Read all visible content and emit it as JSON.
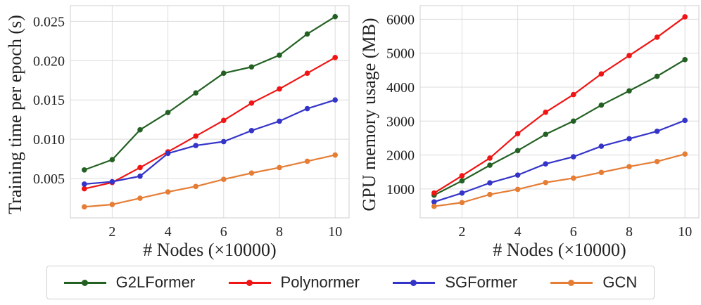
{
  "chart_data": [
    {
      "type": "line",
      "ylabel": "Training time per epoch (s)",
      "xlabel": "# Nodes (×10000)",
      "xlim": [
        0.5,
        10.5
      ],
      "ylim": [
        0.0,
        0.027
      ],
      "xticks": [
        2,
        4,
        6,
        8,
        10
      ],
      "yticks": [
        0.005,
        0.01,
        0.015,
        0.02,
        0.025
      ],
      "ytick_labels": [
        "0.005",
        "0.010",
        "0.015",
        "0.020",
        "0.025"
      ],
      "grid": true,
      "x": [
        1,
        2,
        3,
        4,
        5,
        6,
        7,
        8,
        9,
        10
      ],
      "series": [
        {
          "name": "G2LFormer",
          "values": [
            0.0061,
            0.0074,
            0.0112,
            0.0134,
            0.0159,
            0.0184,
            0.0192,
            0.0207,
            0.0234,
            0.0256
          ]
        },
        {
          "name": "Polynormer",
          "values": [
            0.0037,
            0.0045,
            0.0064,
            0.0084,
            0.0104,
            0.0124,
            0.0146,
            0.0164,
            0.0184,
            0.0204
          ]
        },
        {
          "name": "SGFormer",
          "values": [
            0.0043,
            0.0046,
            0.0053,
            0.0082,
            0.0092,
            0.0097,
            0.0111,
            0.0123,
            0.0139,
            0.015
          ]
        },
        {
          "name": "GCN",
          "values": [
            0.0014,
            0.0017,
            0.0025,
            0.0033,
            0.004,
            0.0049,
            0.0057,
            0.0064,
            0.0072,
            0.008
          ]
        }
      ]
    },
    {
      "type": "line",
      "ylabel": "GPU memory usage (MB)",
      "xlabel": "# Nodes (×10000)",
      "xlim": [
        0.5,
        10.5
      ],
      "ylim": [
        150,
        6400
      ],
      "xticks": [
        2,
        4,
        6,
        8,
        10
      ],
      "yticks": [
        1000,
        2000,
        3000,
        4000,
        5000,
        6000
      ],
      "ytick_labels": [
        "1000",
        "2000",
        "3000",
        "4000",
        "5000",
        "6000"
      ],
      "grid": true,
      "x": [
        1,
        2,
        3,
        4,
        5,
        6,
        7,
        8,
        9,
        10
      ],
      "series": [
        {
          "name": "G2LFormer",
          "values": [
            820,
            1240,
            1700,
            2130,
            2610,
            3000,
            3470,
            3890,
            4320,
            4810
          ]
        },
        {
          "name": "Polynormer",
          "values": [
            880,
            1390,
            1910,
            2630,
            3260,
            3780,
            4390,
            4930,
            5470,
            6070
          ]
        },
        {
          "name": "SGFormer",
          "values": [
            620,
            880,
            1180,
            1410,
            1740,
            1950,
            2260,
            2480,
            2700,
            3020
          ]
        },
        {
          "name": "GCN",
          "values": [
            490,
            600,
            840,
            990,
            1190,
            1320,
            1490,
            1660,
            1810,
            2030
          ]
        }
      ]
    }
  ],
  "colors": {
    "G2LFormer": "#236123",
    "Polynormer": "#f01414",
    "SGFormer": "#3434c8",
    "GCN": "#e57d35",
    "grid": "#dcdcdc",
    "axis": "#cfcfcf"
  },
  "legend": {
    "placement": "bottom",
    "items": [
      "G2LFormer",
      "Polynormer",
      "SGFormer",
      "GCN"
    ]
  }
}
